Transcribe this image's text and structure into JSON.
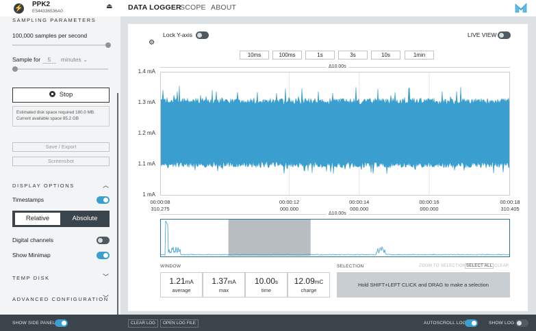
{
  "device": {
    "name": "PPK2",
    "serial": "E544336536A0"
  },
  "nav": {
    "tabs": [
      "DATA LOGGER",
      "SCOPE",
      "ABOUT"
    ],
    "active": "DATA LOGGER"
  },
  "sidebar": {
    "sampling_title": "SAMPLING PARAMETERS",
    "samples_label": "100,000 samples per second",
    "samples_level": 1.0,
    "sample_for_label": "Sample for",
    "sample_for_value": "5",
    "sample_for_unit": "minutes",
    "duration_level": 0.0,
    "stop_label": "Stop",
    "info_line1": "Estimated disk space required 180.0 MB.",
    "info_line2": "Current available space 85.2 GB",
    "save_label": "Save / Export",
    "screenshot_label": "Screenshot",
    "display_title": "DISPLAY OPTIONS",
    "timestamps_label": "Timestamps",
    "timestamps_on": true,
    "relative_label": "Relative",
    "absolute_label": "Absolute",
    "digital_label": "Digital channels",
    "digital_on": false,
    "minimap_label": "Show Minimap",
    "minimap_on": true,
    "temp_disk_title": "TEMP DISK",
    "advanced_title": "ADVANCED CONFIGURATION"
  },
  "toolbar": {
    "lock_y_label": "Lock Y-axis",
    "lock_y_on": false,
    "live_view_label": "LIVE VIEW",
    "live_view_on": false,
    "window_buttons": [
      "10ms",
      "100ms",
      "1s",
      "3s",
      "10s",
      "1min"
    ]
  },
  "chart_data": {
    "type": "area",
    "delta_label": "Δ10.00s",
    "y_ticks": [
      "1.4 mA",
      "1.3 mA",
      "1.2 mA",
      "1.1 mA",
      "1 mA"
    ],
    "ylim": [
      1.0,
      1.4
    ],
    "y_unit": "mA",
    "x_ticks": [
      {
        "time": "00:00:08",
        "sub": "310.275"
      },
      {
        "time": "00:00:12",
        "sub": "000.000"
      },
      {
        "time": "00:00:14",
        "sub": "000.000"
      },
      {
        "time": "00:00:16",
        "sub": "000.000"
      },
      {
        "time": "00:00:18",
        "sub": "310.405"
      }
    ],
    "x_tick_seconds": [
      8.310275,
      12.0,
      14.0,
      16.0,
      18.310405
    ],
    "xlim": [
      8.310275,
      18.310405
    ],
    "band": {
      "center": 1.2,
      "low": 1.1,
      "high": 1.3,
      "spike_max": 1.36,
      "spike_min": 1.07
    },
    "color": "#3a9fcf"
  },
  "minimap": {
    "delta_label": "Δ10.00s",
    "selection_start_fraction": 0.195,
    "selection_end_fraction": 0.43
  },
  "window_stats": {
    "title": "WINDOW",
    "items": [
      {
        "value": "1.21",
        "unit": "mA",
        "label": "average"
      },
      {
        "value": "1.37",
        "unit": "mA",
        "label": "max"
      },
      {
        "value": "10.00",
        "unit": "s",
        "label": "time"
      },
      {
        "value": "12.09",
        "unit": "mC",
        "label": "charge"
      }
    ]
  },
  "selection": {
    "title": "SELECTION",
    "zoom_label": "ZOOM TO SELECTION",
    "select_all_label": "SELECT ALL",
    "clear_label": "CLEAR",
    "hint": "Hold SHIFT+LEFT CLICK and DRAG to make a selection"
  },
  "bottom": {
    "show_side_panel_label": "SHOW SIDE PANEL",
    "show_side_panel_on": true,
    "clear_log_label": "CLEAR LOG",
    "open_log_label": "OPEN LOG FILE",
    "autoscroll_label": "AUTOSCROLL LOG",
    "autoscroll_on": true,
    "show_log_label": "SHOW LOG",
    "show_log_on": false
  },
  "colors": {
    "accent": "#3a9fcf",
    "dark": "#3a444a",
    "sidebar_bg": "#f3f4f5",
    "main_bg": "#dde1e4"
  },
  "icons": {
    "device": "bolt-icon",
    "eject": "eject-icon",
    "logo": "nordic-logo-icon",
    "settings": "gear-icon",
    "stop": "stop-icon",
    "chevron": "chevron-icon"
  }
}
